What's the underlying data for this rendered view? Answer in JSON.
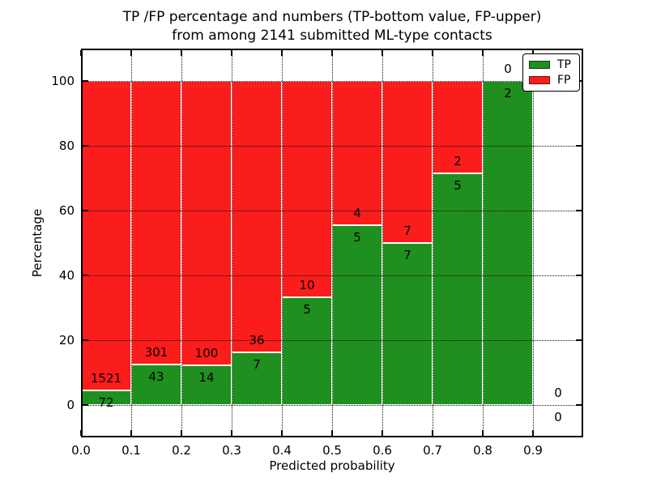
{
  "title": {
    "line1": "TP /FP percentage and numbers (TP-bottom value, FP-upper)",
    "line2": "from among 2141 submitted ML-type contacts"
  },
  "axes": {
    "xlabel": "Predicted probability",
    "ylabel": "Percentage",
    "x_ticks": [
      "0.0",
      "0.1",
      "0.2",
      "0.3",
      "0.4",
      "0.5",
      "0.6",
      "0.7",
      "0.8",
      "0.9"
    ],
    "y_ticks": [
      "0",
      "20",
      "40",
      "60",
      "80",
      "100"
    ]
  },
  "legend": {
    "tp_label": "TP",
    "fp_label": "FP"
  },
  "colors": {
    "tp_green": "#1f8f1f",
    "fp_red": "#fb1c1c",
    "grid": "#111111",
    "bar_edge": "#ffffff"
  },
  "chart_data": {
    "type": "bar",
    "stacked": true,
    "normalized_to_percent": true,
    "title": "TP /FP percentage and numbers (TP-bottom value, FP-upper) from among 2141 submitted ML-type contacts",
    "xlabel": "Predicted probability",
    "ylabel": "Percentage",
    "xlim": [
      0.0,
      1.0
    ],
    "ylim": [
      -10,
      110
    ],
    "x_tick_values": [
      0.0,
      0.1,
      0.2,
      0.3,
      0.4,
      0.5,
      0.6,
      0.7,
      0.8,
      0.9
    ],
    "y_tick_values": [
      0,
      20,
      40,
      60,
      80,
      100
    ],
    "grid": "dotted",
    "legend": [
      "TP",
      "FP"
    ],
    "legend_position": "upper right",
    "series": [
      {
        "name": "TP",
        "role": "bottom",
        "counts": [
          72,
          43,
          14,
          7,
          5,
          5,
          7,
          5,
          2,
          0
        ]
      },
      {
        "name": "FP",
        "role": "upper",
        "counts": [
          1521,
          301,
          100,
          36,
          10,
          4,
          7,
          2,
          0,
          0
        ]
      }
    ],
    "bins": [
      {
        "x0": 0.0,
        "x1": 0.1,
        "tp": "72",
        "fp": "1521",
        "tp_pct": 4.52
      },
      {
        "x0": 0.1,
        "x1": 0.2,
        "tp": "43",
        "fp": "301",
        "tp_pct": 12.5
      },
      {
        "x0": 0.2,
        "x1": 0.3,
        "tp": "14",
        "fp": "100",
        "tp_pct": 12.28
      },
      {
        "x0": 0.3,
        "x1": 0.4,
        "tp": "7",
        "fp": "36",
        "tp_pct": 16.28
      },
      {
        "x0": 0.4,
        "x1": 0.5,
        "tp": "5",
        "fp": "10",
        "tp_pct": 33.33
      },
      {
        "x0": 0.5,
        "x1": 0.6,
        "tp": "5",
        "fp": "4",
        "tp_pct": 55.56
      },
      {
        "x0": 0.6,
        "x1": 0.7,
        "tp": "7",
        "fp": "7",
        "tp_pct": 50.0
      },
      {
        "x0": 0.7,
        "x1": 0.8,
        "tp": "5",
        "fp": "2",
        "tp_pct": 71.43
      },
      {
        "x0": 0.8,
        "x1": 0.9,
        "tp": "2",
        "fp": "0",
        "tp_pct": 100.0
      },
      {
        "x0": 0.9,
        "x1": 1.0,
        "tp": "0",
        "fp": "0",
        "tp_pct": 0.0
      }
    ]
  }
}
